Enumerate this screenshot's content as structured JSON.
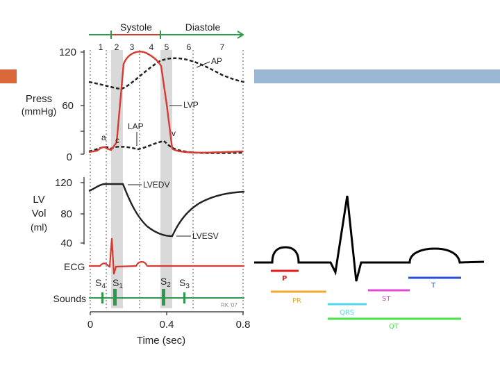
{
  "wiggers": {
    "phases": {
      "systole": "Systole",
      "diastole": "Diastole"
    },
    "phase_numbers": [
      "1",
      "2",
      "3",
      "4",
      "5",
      "6",
      "7"
    ],
    "pressure_axis": {
      "label_line1": "Press",
      "label_line2": "(mmHg)",
      "ticks": [
        "120",
        "60",
        "0"
      ]
    },
    "volume_axis": {
      "label_line1": "LV",
      "label_line2": "Vol",
      "label_line3": "(ml)",
      "ticks": [
        "120",
        "80",
        "40"
      ]
    },
    "curve_labels": {
      "ap": "AP",
      "lvp": "LVP",
      "lap": "LAP",
      "a": "a",
      "c": "c",
      "v": "v",
      "lvedv": "LVEDV",
      "lvesv": "LVESV"
    },
    "ecg_label": "ECG",
    "sounds": {
      "label": "Sounds",
      "s4_main": "S",
      "s4_sub": "4",
      "s1_main": "S",
      "s1_sub": "1",
      "s2_main": "S",
      "s2_sub": "2",
      "s3_main": "S",
      "s3_sub": "3",
      "credit": "RK '07"
    },
    "time_axis": {
      "ticks": [
        "0",
        "0.4",
        "0.8"
      ],
      "label": "Time (sec)"
    },
    "colors": {
      "lvp": "#d63a2f",
      "ecg": "#d63a2f",
      "phase_bar": "#2f9a4a",
      "band": "#d9d9d9"
    }
  },
  "ecg_segments": {
    "p": {
      "label": "P",
      "color": "#e01b1b"
    },
    "pr": {
      "label": "PR",
      "color": "#f0a830"
    },
    "qrs": {
      "label": "QRS",
      "color": "#4fd8e8"
    },
    "st": {
      "label": "ST",
      "color": "#e048d8"
    },
    "t": {
      "label": "T",
      "color": "#2a4fd8"
    },
    "qt": {
      "label": "QT",
      "color": "#44e044"
    }
  }
}
